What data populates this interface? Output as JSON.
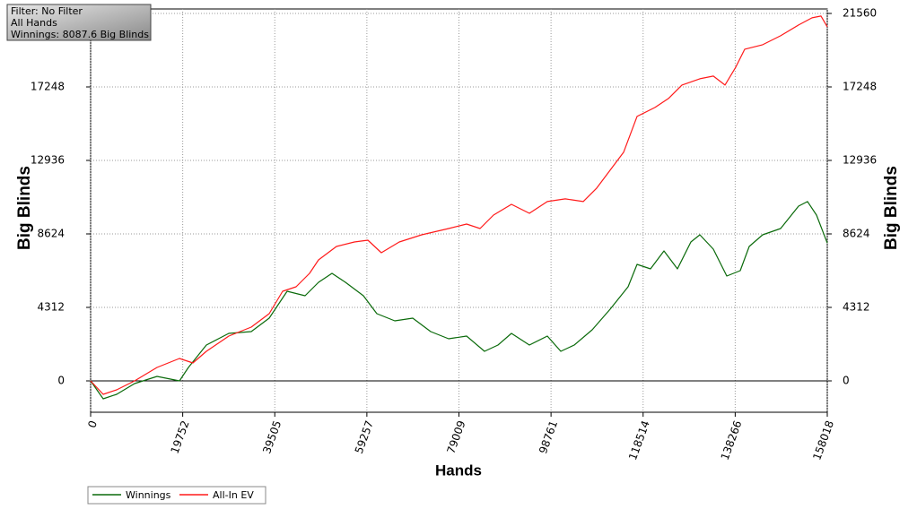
{
  "chart_data": {
    "type": "line",
    "annotations": [
      "Filter: No Filter",
      "All Hands",
      "Winnings: 8087.6 Big Blinds"
    ],
    "x_label": "Hands",
    "y_label": "Big Blinds",
    "y2_label": "Big Blinds",
    "xlim": [
      0,
      158018
    ],
    "xticks": [
      0,
      19752,
      39505,
      59257,
      79009,
      98761,
      118514,
      138266,
      158018
    ],
    "ylim": [
      -1840,
      21560
    ],
    "yticks": [
      0,
      4312,
      8624,
      12936,
      17248,
      21560
    ],
    "y2lim": [
      -1840,
      21560
    ],
    "y2ticks": [
      0,
      4312,
      8624,
      12936,
      17248,
      21560
    ],
    "grid": true,
    "legend": "bottom-left",
    "series": [
      {
        "name": "Winnings",
        "color": "#0a6a0a",
        "x": [
          0,
          2695,
          5582,
          9431,
          14243,
          19055,
          20980,
          24829,
          29641,
          34453,
          38302,
          40227,
          42152,
          46001,
          48888,
          51775,
          54662,
          58511,
          61398,
          65247,
          69097,
          72946,
          76796,
          80645,
          84494,
          87381,
          90268,
          94118,
          97967,
          100854,
          103741,
          107590,
          111440,
          115289,
          117214,
          120101,
          122988,
          125875,
          128762,
          130687,
          133574,
          136461,
          139348,
          141272,
          144159,
          148009,
          151858,
          153783,
          155708,
          158018
        ],
        "values": [
          0,
          -1052,
          -789,
          -158,
          263,
          0,
          789,
          2104,
          2788,
          2893,
          3682,
          4471,
          5260,
          4997,
          5786,
          6312,
          5786,
          4997,
          3945,
          3524,
          3682,
          2893,
          2472,
          2630,
          1736,
          2104,
          2788,
          2104,
          2630,
          1736,
          2104,
          2998,
          4208,
          5523,
          6838,
          6575,
          7627,
          6575,
          8153,
          8574,
          7732,
          6154,
          6470,
          7890,
          8574,
          8942,
          10257,
          10520,
          9731,
          8088
        ]
      },
      {
        "name": "All-In EV",
        "color": "#ff1a1a",
        "x": [
          0,
          2695,
          5582,
          9431,
          14243,
          19055,
          21942,
          24829,
          29641,
          34453,
          38302,
          41189,
          44076,
          46963,
          48888,
          52737,
          56586,
          59473,
          62360,
          66210,
          71021,
          76796,
          80645,
          83532,
          86419,
          90268,
          94118,
          97967,
          101816,
          105666,
          108553,
          111440,
          114327,
          117214,
          121063,
          123950,
          126837,
          130687,
          133574,
          136076,
          138385,
          140310,
          144159,
          148009,
          151858,
          154745,
          156670,
          158018
        ],
        "values": [
          0,
          -789,
          -526,
          0,
          789,
          1315,
          1052,
          1736,
          2630,
          3156,
          3945,
          5260,
          5523,
          6312,
          7101,
          7890,
          8153,
          8258,
          7522,
          8153,
          8574,
          8942,
          9205,
          8942,
          9731,
          10362,
          9836,
          10520,
          10678,
          10520,
          11309,
          12361,
          13413,
          15517,
          16043,
          16569,
          17358,
          17726,
          17884,
          17358,
          18410,
          19462,
          19725,
          20251,
          20882,
          21303,
          21408,
          20777
        ]
      }
    ]
  }
}
